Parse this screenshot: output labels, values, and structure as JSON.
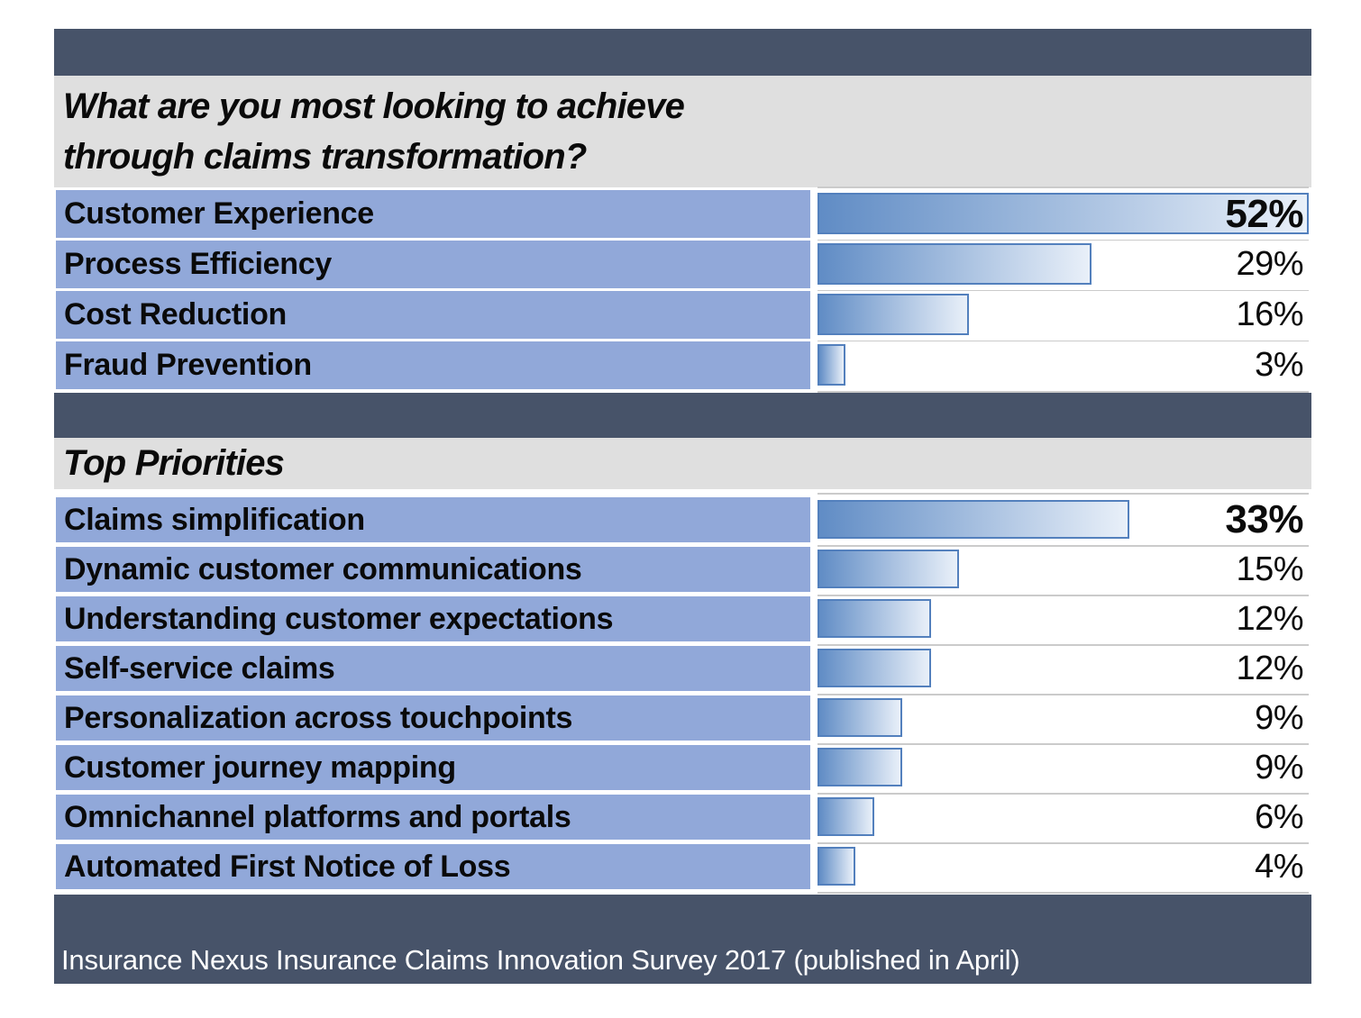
{
  "colors": {
    "dark": "#475369",
    "band_gray": "#DFDFDF",
    "label_blue": "#91A8D9",
    "bar_border": "#5380BD",
    "bar_start": "#608CC5",
    "bar_end": "#E9F0F9",
    "separator": "#CBCBCB",
    "text": "#0A0A0A",
    "footer_text": "#FFFFFF"
  },
  "scale_max": 52,
  "chart1": {
    "title_line1": "What are you most looking to achieve",
    "title_line2": "through claims transformation?",
    "rows": [
      {
        "label": "Customer Experience",
        "value": 52,
        "display": "52%",
        "emphasis": true
      },
      {
        "label": "Process Efficiency",
        "value": 29,
        "display": "29%",
        "emphasis": false
      },
      {
        "label": "Cost Reduction",
        "value": 16,
        "display": "16%",
        "emphasis": false
      },
      {
        "label": "Fraud Prevention",
        "value": 3,
        "display": "3%",
        "emphasis": false
      }
    ]
  },
  "chart2": {
    "title": "Top Priorities",
    "rows": [
      {
        "label": "Claims simplification",
        "value": 33,
        "display": "33%",
        "emphasis": true
      },
      {
        "label": "Dynamic customer communications",
        "value": 15,
        "display": "15%",
        "emphasis": false
      },
      {
        "label": "Understanding customer expectations",
        "value": 12,
        "display": "12%",
        "emphasis": false
      },
      {
        "label": "Self-service claims",
        "value": 12,
        "display": "12%",
        "emphasis": false
      },
      {
        "label": "Personalization across touchpoints",
        "value": 9,
        "display": "9%",
        "emphasis": false
      },
      {
        "label": "Customer journey mapping",
        "value": 9,
        "display": "9%",
        "emphasis": false
      },
      {
        "label": "Omnichannel platforms and portals",
        "value": 6,
        "display": "6%",
        "emphasis": false
      },
      {
        "label": "Automated First Notice of Loss",
        "value": 4,
        "display": "4%",
        "emphasis": false
      }
    ]
  },
  "footer": {
    "source": "Insurance Nexus Insurance Claims Innovation Survey 2017 (published in April)"
  },
  "chart_data": [
    {
      "type": "bar",
      "orientation": "horizontal",
      "title": "What are you most looking to achieve through claims transformation?",
      "categories": [
        "Customer Experience",
        "Process Efficiency",
        "Cost Reduction",
        "Fraud Prevention"
      ],
      "values": [
        52,
        29,
        16,
        3
      ],
      "unit": "%",
      "xlabel": "",
      "ylabel": "",
      "xlim": [
        0,
        52
      ],
      "grid": false,
      "legend": "none",
      "data_labels": [
        "52%",
        "29%",
        "16%",
        "3%"
      ]
    },
    {
      "type": "bar",
      "orientation": "horizontal",
      "title": "Top Priorities",
      "categories": [
        "Claims simplification",
        "Dynamic customer communications",
        "Understanding customer expectations",
        "Self-service claims",
        "Personalization across touchpoints",
        "Customer journey mapping",
        "Omnichannel platforms and portals",
        "Automated First Notice of Loss"
      ],
      "values": [
        33,
        15,
        12,
        12,
        9,
        9,
        6,
        4
      ],
      "unit": "%",
      "xlabel": "",
      "ylabel": "",
      "xlim": [
        0,
        52
      ],
      "grid": false,
      "legend": "none",
      "data_labels": [
        "33%",
        "15%",
        "12%",
        "12%",
        "9%",
        "9%",
        "6%",
        "4%"
      ]
    }
  ]
}
